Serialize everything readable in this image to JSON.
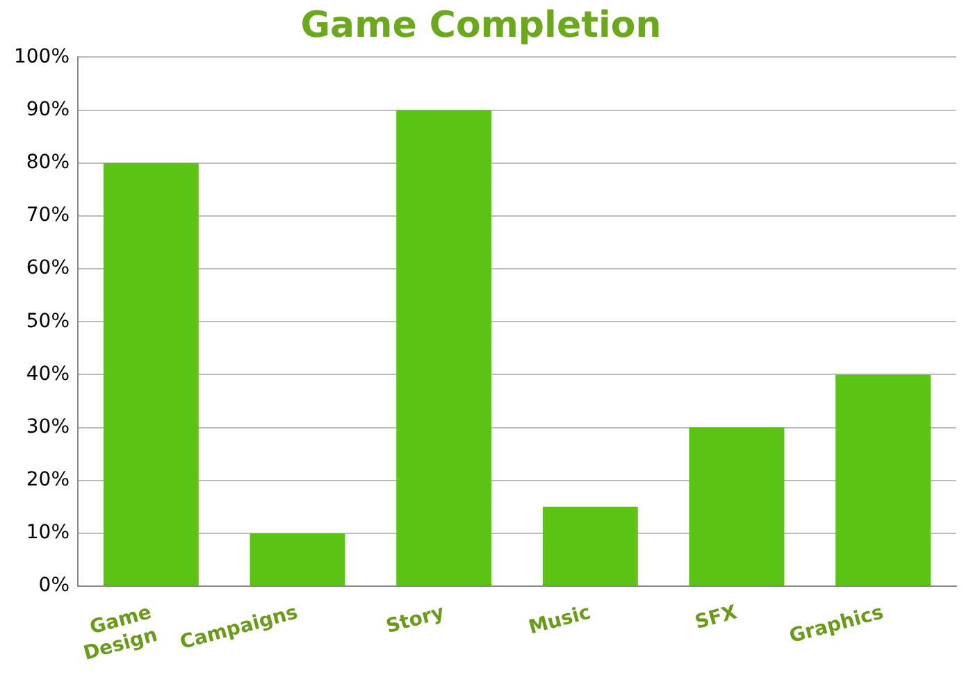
{
  "chart_data": {
    "type": "bar",
    "title": "Game Completion",
    "categories": [
      "Game Design",
      "Campaigns",
      "Story",
      "Music",
      "SFX",
      "Graphics"
    ],
    "values": [
      80,
      10,
      90,
      15,
      30,
      40
    ],
    "color": "#5cc414",
    "ylim": [
      0,
      100
    ],
    "yticks": [
      {
        "value": 0,
        "label": "0%"
      },
      {
        "value": 10,
        "label": "10%"
      },
      {
        "value": 20,
        "label": "20%"
      },
      {
        "value": 30,
        "label": "30%"
      },
      {
        "value": 40,
        "label": "40%"
      },
      {
        "value": 50,
        "label": "50%"
      },
      {
        "value": 60,
        "label": "60%"
      },
      {
        "value": 70,
        "label": "70%"
      },
      {
        "value": 80,
        "label": "80%"
      },
      {
        "value": 90,
        "label": "90%"
      },
      {
        "value": 100,
        "label": "100%"
      }
    ],
    "grid": "y",
    "legend": false
  }
}
